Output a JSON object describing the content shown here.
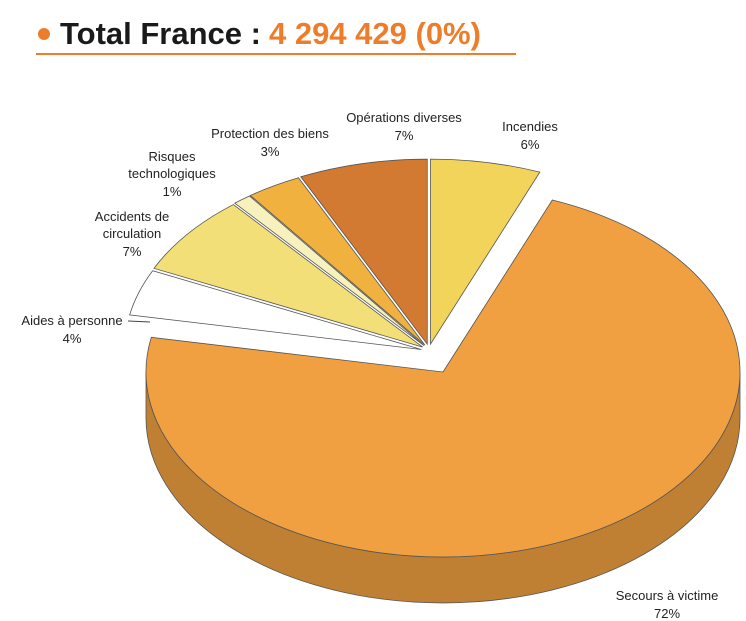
{
  "chart_data": {
    "type": "pie3d",
    "title": "Total France :",
    "total": "4 294 429 (0%)",
    "categories": [
      "Incendies",
      "Secours à victime",
      "Aides à personne",
      "Accidents de\ncirculation",
      "Risques\ntechnologiques",
      "Protection des biens",
      "Opérations diverses"
    ],
    "values": [
      6,
      72,
      4,
      7,
      1,
      3,
      7
    ],
    "value_labels": [
      "6%",
      "72%",
      "4%",
      "7%",
      "1%",
      "3%",
      "7%"
    ],
    "colors": [
      "#f2d45a",
      "#f0a040",
      "#ffffff",
      "#f2df78",
      "#f7f1bd",
      "#f0b13e",
      "#d27a32"
    ]
  }
}
